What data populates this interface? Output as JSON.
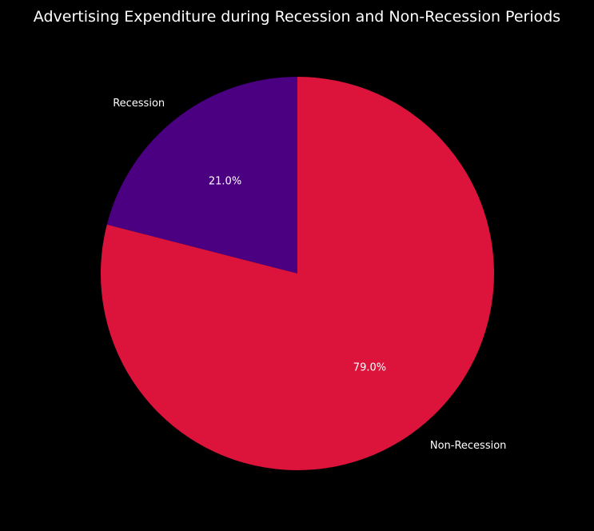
{
  "chart_data": {
    "type": "pie",
    "title": "Advertising Expenditure during Recession and Non-Recession Periods",
    "categories": [
      "Recession",
      "Non-Recession"
    ],
    "values": [
      21.0,
      79.0
    ],
    "percent_labels": [
      "21.0%",
      "79.0%"
    ],
    "colors": [
      "#4B0082",
      "#DC143C"
    ],
    "start_angle_deg": 90,
    "direction": "counterclockwise",
    "background": "#000000",
    "text_color": "#FFFFFF",
    "legend": "none"
  }
}
